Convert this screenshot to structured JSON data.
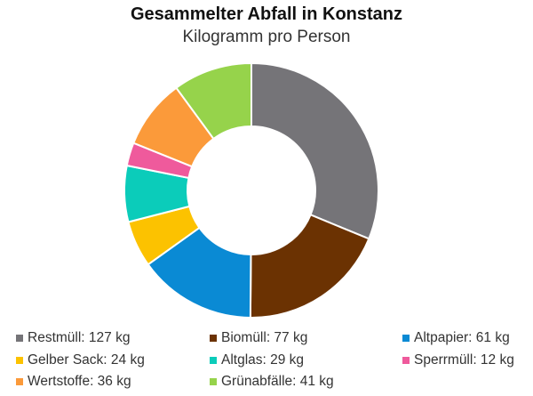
{
  "chart_data": {
    "type": "pie",
    "title": "Gesammelter Abfall in Konstanz",
    "subtitle": "Kilogramm pro Person",
    "donut": true,
    "legend_position": "bottom",
    "unit": "kg",
    "slices": [
      {
        "label": "Restmüll",
        "value": 127,
        "color": "#757478",
        "legend_text": "Restmüll: 127 kg"
      },
      {
        "label": "Biomüll",
        "value": 77,
        "color": "#6b3202",
        "legend_text": "Biomüll: 77 kg"
      },
      {
        "label": "Altpapier",
        "value": 61,
        "color": "#0a8ad4",
        "legend_text": "Altpapier: 61 kg"
      },
      {
        "label": "Gelber Sack",
        "value": 24,
        "color": "#fcc200",
        "legend_text": "Gelber Sack: 24 kg"
      },
      {
        "label": "Altglas",
        "value": 29,
        "color": "#0bccba",
        "legend_text": "Altglas: 29 kg"
      },
      {
        "label": "Sperrmüll",
        "value": 12,
        "color": "#ef5a9c",
        "legend_text": "Sperrmüll: 12 kg"
      },
      {
        "label": "Wertstoffe",
        "value": 36,
        "color": "#fb9a3a",
        "legend_text": "Wertstoffe: 36 kg"
      },
      {
        "label": "Grünabfälle",
        "value": 41,
        "color": "#96d34b",
        "legend_text": "Grünabfälle: 41 kg"
      }
    ]
  }
}
